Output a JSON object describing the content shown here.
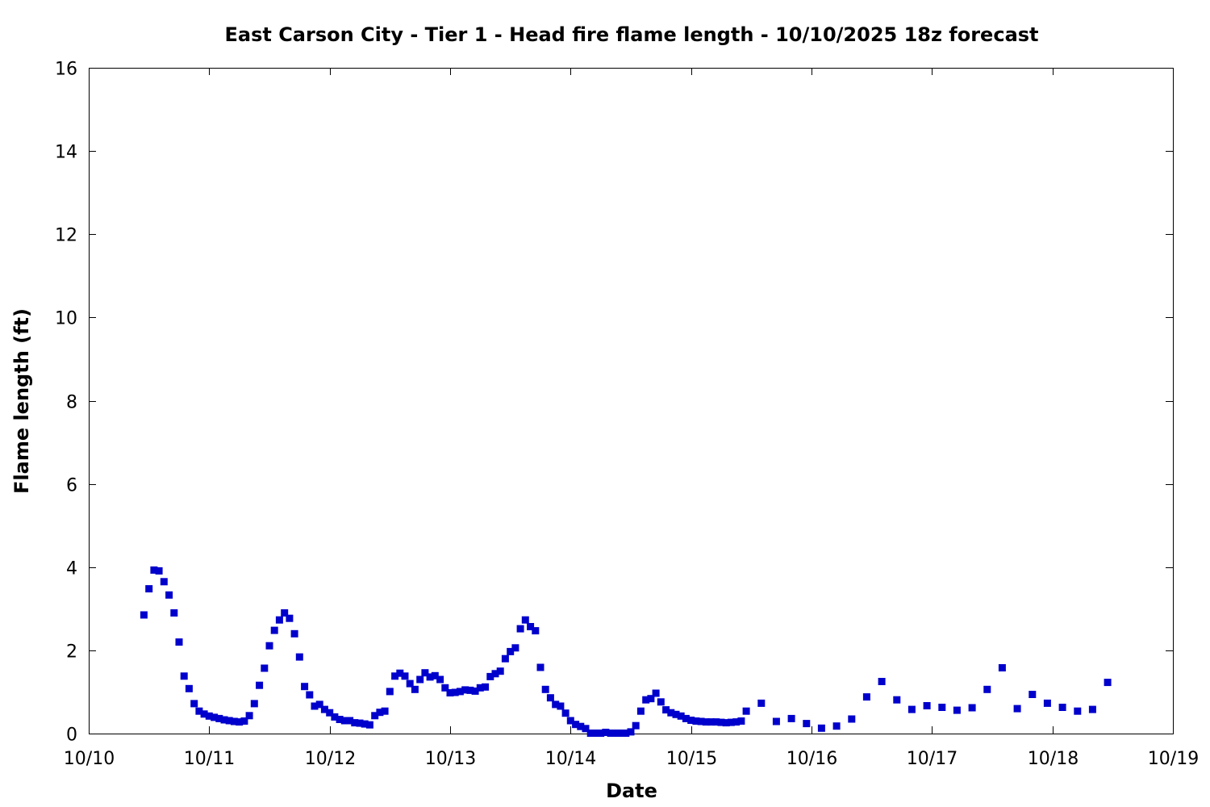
{
  "chart_data": {
    "type": "scatter",
    "title": "East Carson City - Tier 1 - Head fire flame length - 10/10/2025 18z forecast",
    "xlabel": "Date",
    "ylabel": "Flame length (ft)",
    "xlim": [
      "10/10/2025 00:00",
      "10/19/2025 00:00"
    ],
    "ylim": [
      0,
      16
    ],
    "x_ticks": [
      "10/10",
      "10/11",
      "10/12",
      "10/13",
      "10/14",
      "10/15",
      "10/16",
      "10/17",
      "10/18",
      "10/19"
    ],
    "y_ticks": [
      "0",
      "2",
      "4",
      "6",
      "8",
      "10",
      "12",
      "14",
      "16"
    ],
    "grid": false,
    "legend": "none",
    "marker_color": "#0000cc",
    "series": [
      {
        "marker": "square",
        "points": [
          [
            "10/10/2025 11:00",
            2.85
          ],
          [
            "10/10/2025 12:00",
            3.48
          ],
          [
            "10/10/2025 13:00",
            3.93
          ],
          [
            "10/10/2025 14:00",
            3.91
          ],
          [
            "10/10/2025 15:00",
            3.65
          ],
          [
            "10/10/2025 16:00",
            3.33
          ],
          [
            "10/10/2025 17:00",
            2.9
          ],
          [
            "10/10/2025 18:00",
            2.2
          ],
          [
            "10/10/2025 19:00",
            1.38
          ],
          [
            "10/10/2025 20:00",
            1.08
          ],
          [
            "10/10/2025 21:00",
            0.72
          ],
          [
            "10/10/2025 22:00",
            0.54
          ],
          [
            "10/10/2025 23:00",
            0.47
          ],
          [
            "10/11/2025 00:00",
            0.42
          ],
          [
            "10/11/2025 01:00",
            0.39
          ],
          [
            "10/11/2025 02:00",
            0.36
          ],
          [
            "10/11/2025 03:00",
            0.33
          ],
          [
            "10/11/2025 04:00",
            0.31
          ],
          [
            "10/11/2025 05:00",
            0.29
          ],
          [
            "10/11/2025 06:00",
            0.28
          ],
          [
            "10/11/2025 07:00",
            0.3
          ],
          [
            "10/11/2025 08:00",
            0.43
          ],
          [
            "10/11/2025 09:00",
            0.72
          ],
          [
            "10/11/2025 10:00",
            1.16
          ],
          [
            "10/11/2025 11:00",
            1.57
          ],
          [
            "10/11/2025 12:00",
            2.11
          ],
          [
            "10/11/2025 13:00",
            2.48
          ],
          [
            "10/11/2025 14:00",
            2.73
          ],
          [
            "10/11/2025 15:00",
            2.9
          ],
          [
            "10/11/2025 16:00",
            2.77
          ],
          [
            "10/11/2025 17:00",
            2.4
          ],
          [
            "10/11/2025 18:00",
            1.84
          ],
          [
            "10/11/2025 19:00",
            1.13
          ],
          [
            "10/11/2025 20:00",
            0.93
          ],
          [
            "10/11/2025 21:00",
            0.66
          ],
          [
            "10/11/2025 22:00",
            0.7
          ],
          [
            "10/11/2025 23:00",
            0.58
          ],
          [
            "10/12/2025 00:00",
            0.5
          ],
          [
            "10/12/2025 01:00",
            0.4
          ],
          [
            "10/12/2025 02:00",
            0.34
          ],
          [
            "10/12/2025 03:00",
            0.31
          ],
          [
            "10/12/2025 04:00",
            0.31
          ],
          [
            "10/12/2025 05:00",
            0.26
          ],
          [
            "10/12/2025 06:00",
            0.25
          ],
          [
            "10/12/2025 07:00",
            0.23
          ],
          [
            "10/12/2025 08:00",
            0.21
          ],
          [
            "10/12/2025 09:00",
            0.43
          ],
          [
            "10/12/2025 10:00",
            0.51
          ],
          [
            "10/12/2025 11:00",
            0.54
          ],
          [
            "10/12/2025 12:00",
            1.01
          ],
          [
            "10/12/2025 13:00",
            1.38
          ],
          [
            "10/12/2025 14:00",
            1.45
          ],
          [
            "10/12/2025 15:00",
            1.38
          ],
          [
            "10/12/2025 16:00",
            1.2
          ],
          [
            "10/12/2025 17:00",
            1.06
          ],
          [
            "10/12/2025 18:00",
            1.3
          ],
          [
            "10/12/2025 19:00",
            1.46
          ],
          [
            "10/12/2025 20:00",
            1.36
          ],
          [
            "10/12/2025 21:00",
            1.39
          ],
          [
            "10/12/2025 22:00",
            1.3
          ],
          [
            "10/12/2025 23:00",
            1.1
          ],
          [
            "10/13/2025 00:00",
            0.98
          ],
          [
            "10/13/2025 01:00",
            0.99
          ],
          [
            "10/13/2025 02:00",
            1.01
          ],
          [
            "10/13/2025 03:00",
            1.05
          ],
          [
            "10/13/2025 04:00",
            1.04
          ],
          [
            "10/13/2025 05:00",
            1.02
          ],
          [
            "10/13/2025 06:00",
            1.1
          ],
          [
            "10/13/2025 07:00",
            1.12
          ],
          [
            "10/13/2025 08:00",
            1.37
          ],
          [
            "10/13/2025 09:00",
            1.44
          ],
          [
            "10/13/2025 10:00",
            1.5
          ],
          [
            "10/13/2025 11:00",
            1.8
          ],
          [
            "10/13/2025 12:00",
            1.97
          ],
          [
            "10/13/2025 13:00",
            2.06
          ],
          [
            "10/13/2025 14:00",
            2.52
          ],
          [
            "10/13/2025 15:00",
            2.73
          ],
          [
            "10/13/2025 16:00",
            2.57
          ],
          [
            "10/13/2025 17:00",
            2.47
          ],
          [
            "10/13/2025 18:00",
            1.59
          ],
          [
            "10/13/2025 19:00",
            1.06
          ],
          [
            "10/13/2025 20:00",
            0.86
          ],
          [
            "10/13/2025 21:00",
            0.7
          ],
          [
            "10/13/2025 22:00",
            0.66
          ],
          [
            "10/13/2025 23:00",
            0.49
          ],
          [
            "10/14/2025 00:00",
            0.31
          ],
          [
            "10/14/2025 01:00",
            0.22
          ],
          [
            "10/14/2025 02:00",
            0.17
          ],
          [
            "10/14/2025 03:00",
            0.12
          ],
          [
            "10/14/2025 04:00",
            0.01
          ],
          [
            "10/14/2025 05:00",
            0.01
          ],
          [
            "10/14/2025 06:00",
            0.01
          ],
          [
            "10/14/2025 07:00",
            0.03
          ],
          [
            "10/14/2025 08:00",
            0.01
          ],
          [
            "10/14/2025 09:00",
            0.01
          ],
          [
            "10/14/2025 10:00",
            0.01
          ],
          [
            "10/14/2025 11:00",
            0.01
          ],
          [
            "10/14/2025 12:00",
            0.04
          ],
          [
            "10/14/2025 13:00",
            0.19
          ],
          [
            "10/14/2025 14:00",
            0.54
          ],
          [
            "10/14/2025 15:00",
            0.81
          ],
          [
            "10/14/2025 16:00",
            0.84
          ],
          [
            "10/14/2025 17:00",
            0.97
          ],
          [
            "10/14/2025 18:00",
            0.76
          ],
          [
            "10/14/2025 19:00",
            0.57
          ],
          [
            "10/14/2025 20:00",
            0.5
          ],
          [
            "10/14/2025 21:00",
            0.46
          ],
          [
            "10/14/2025 22:00",
            0.42
          ],
          [
            "10/14/2025 23:00",
            0.36
          ],
          [
            "10/15/2025 00:00",
            0.32
          ],
          [
            "10/15/2025 01:00",
            0.3
          ],
          [
            "10/15/2025 02:00",
            0.29
          ],
          [
            "10/15/2025 03:00",
            0.28
          ],
          [
            "10/15/2025 04:00",
            0.28
          ],
          [
            "10/15/2025 05:00",
            0.28
          ],
          [
            "10/15/2025 06:00",
            0.27
          ],
          [
            "10/15/2025 07:00",
            0.26
          ],
          [
            "10/15/2025 08:00",
            0.27
          ],
          [
            "10/15/2025 09:00",
            0.28
          ],
          [
            "10/15/2025 10:00",
            0.3
          ],
          [
            "10/15/2025 11:00",
            0.54
          ],
          [
            "10/15/2025 14:00",
            0.73
          ],
          [
            "10/15/2025 17:00",
            0.29
          ],
          [
            "10/15/2025 20:00",
            0.36
          ],
          [
            "10/15/2025 23:00",
            0.24
          ],
          [
            "10/16/2025 02:00",
            0.13
          ],
          [
            "10/16/2025 05:00",
            0.18
          ],
          [
            "10/16/2025 08:00",
            0.35
          ],
          [
            "10/16/2025 11:00",
            0.88
          ],
          [
            "10/16/2025 14:00",
            1.25
          ],
          [
            "10/16/2025 17:00",
            0.81
          ],
          [
            "10/16/2025 20:00",
            0.58
          ],
          [
            "10/16/2025 23:00",
            0.67
          ],
          [
            "10/17/2025 02:00",
            0.63
          ],
          [
            "10/17/2025 05:00",
            0.56
          ],
          [
            "10/17/2025 08:00",
            0.62
          ],
          [
            "10/17/2025 11:00",
            1.06
          ],
          [
            "10/17/2025 14:00",
            1.58
          ],
          [
            "10/17/2025 17:00",
            0.6
          ],
          [
            "10/17/2025 20:00",
            0.94
          ],
          [
            "10/17/2025 23:00",
            0.73
          ],
          [
            "10/18/2025 02:00",
            0.63
          ],
          [
            "10/18/2025 05:00",
            0.54
          ],
          [
            "10/18/2025 08:00",
            0.58
          ],
          [
            "10/18/2025 11:00",
            1.23
          ]
        ]
      }
    ]
  }
}
